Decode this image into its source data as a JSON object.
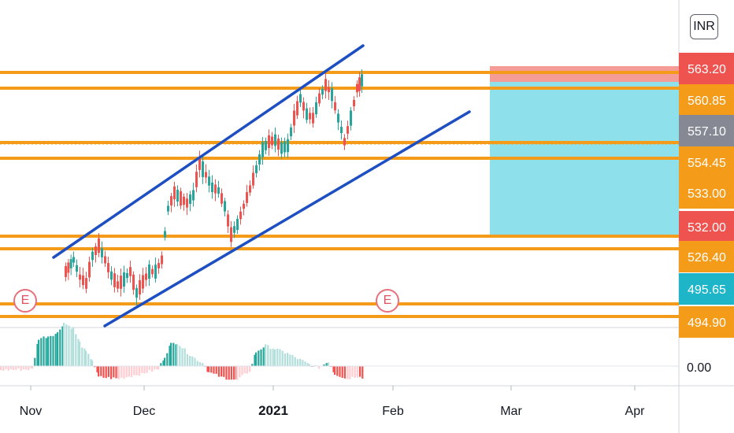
{
  "chart_data": {
    "type": "candlestick",
    "currency": "INR",
    "x_axis": {
      "tick_labels": [
        "Nov",
        "Dec",
        "2021",
        "Feb",
        "Mar",
        "Apr"
      ],
      "bold_tick": "2021"
    },
    "price_levels": [
      {
        "value": "563.20",
        "color": "#ef5350"
      },
      {
        "value": "560.85",
        "color": "#f59b1a"
      },
      {
        "value": "557.10",
        "color": "#868993"
      },
      {
        "value": "554.45",
        "color": "#f59b1a"
      },
      {
        "value": "533.00",
        "color": "#f59b1a"
      },
      {
        "value": "532.00",
        "color": "#ef5350"
      },
      {
        "value": "526.40",
        "color": "#f59b1a"
      },
      {
        "value": "495.65",
        "color": "#1eb5c9"
      },
      {
        "value": "494.90",
        "color": "#f59b1a"
      }
    ],
    "oscillator": {
      "zero_label": "0.00"
    },
    "events": [
      "E",
      "E"
    ],
    "colors": {
      "up": "#26a69a",
      "down": "#ef5350",
      "horizontal_lines": "#f59b1a",
      "channel": "#1e4fc2",
      "target_zone": "#8ee1ea",
      "stop_zone": "#f28b82"
    }
  }
}
